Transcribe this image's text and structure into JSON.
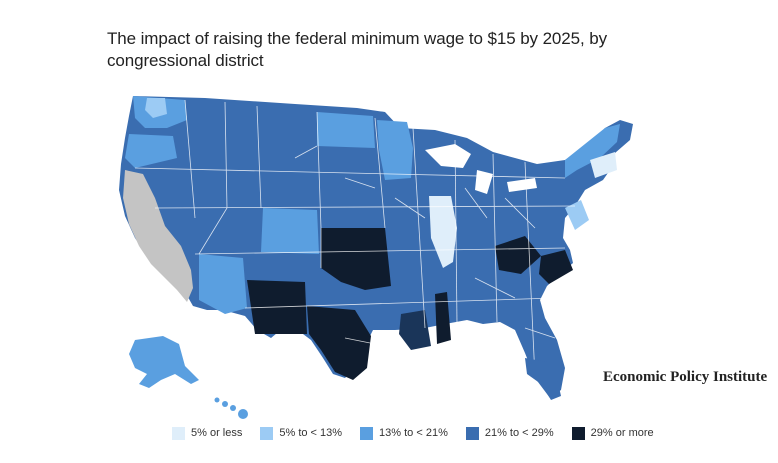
{
  "title": "The impact of raising the federal minimum wage to $15 by 2025, by congressional district",
  "brand": "Economic Policy Institute",
  "legend": [
    {
      "label": "5% or less",
      "color": "#dfeefa"
    },
    {
      "label": "5% to < 13%",
      "color": "#9ccbf4"
    },
    {
      "label": "13% to < 21%",
      "color": "#5a9fe0"
    },
    {
      "label": "21% to < 29%",
      "color": "#3a6db0"
    },
    {
      "label": "29% or more",
      "color": "#0f1c2e"
    }
  ],
  "colors": {
    "no_data": "#c4c4c4",
    "boundary": "#ffffff"
  }
}
